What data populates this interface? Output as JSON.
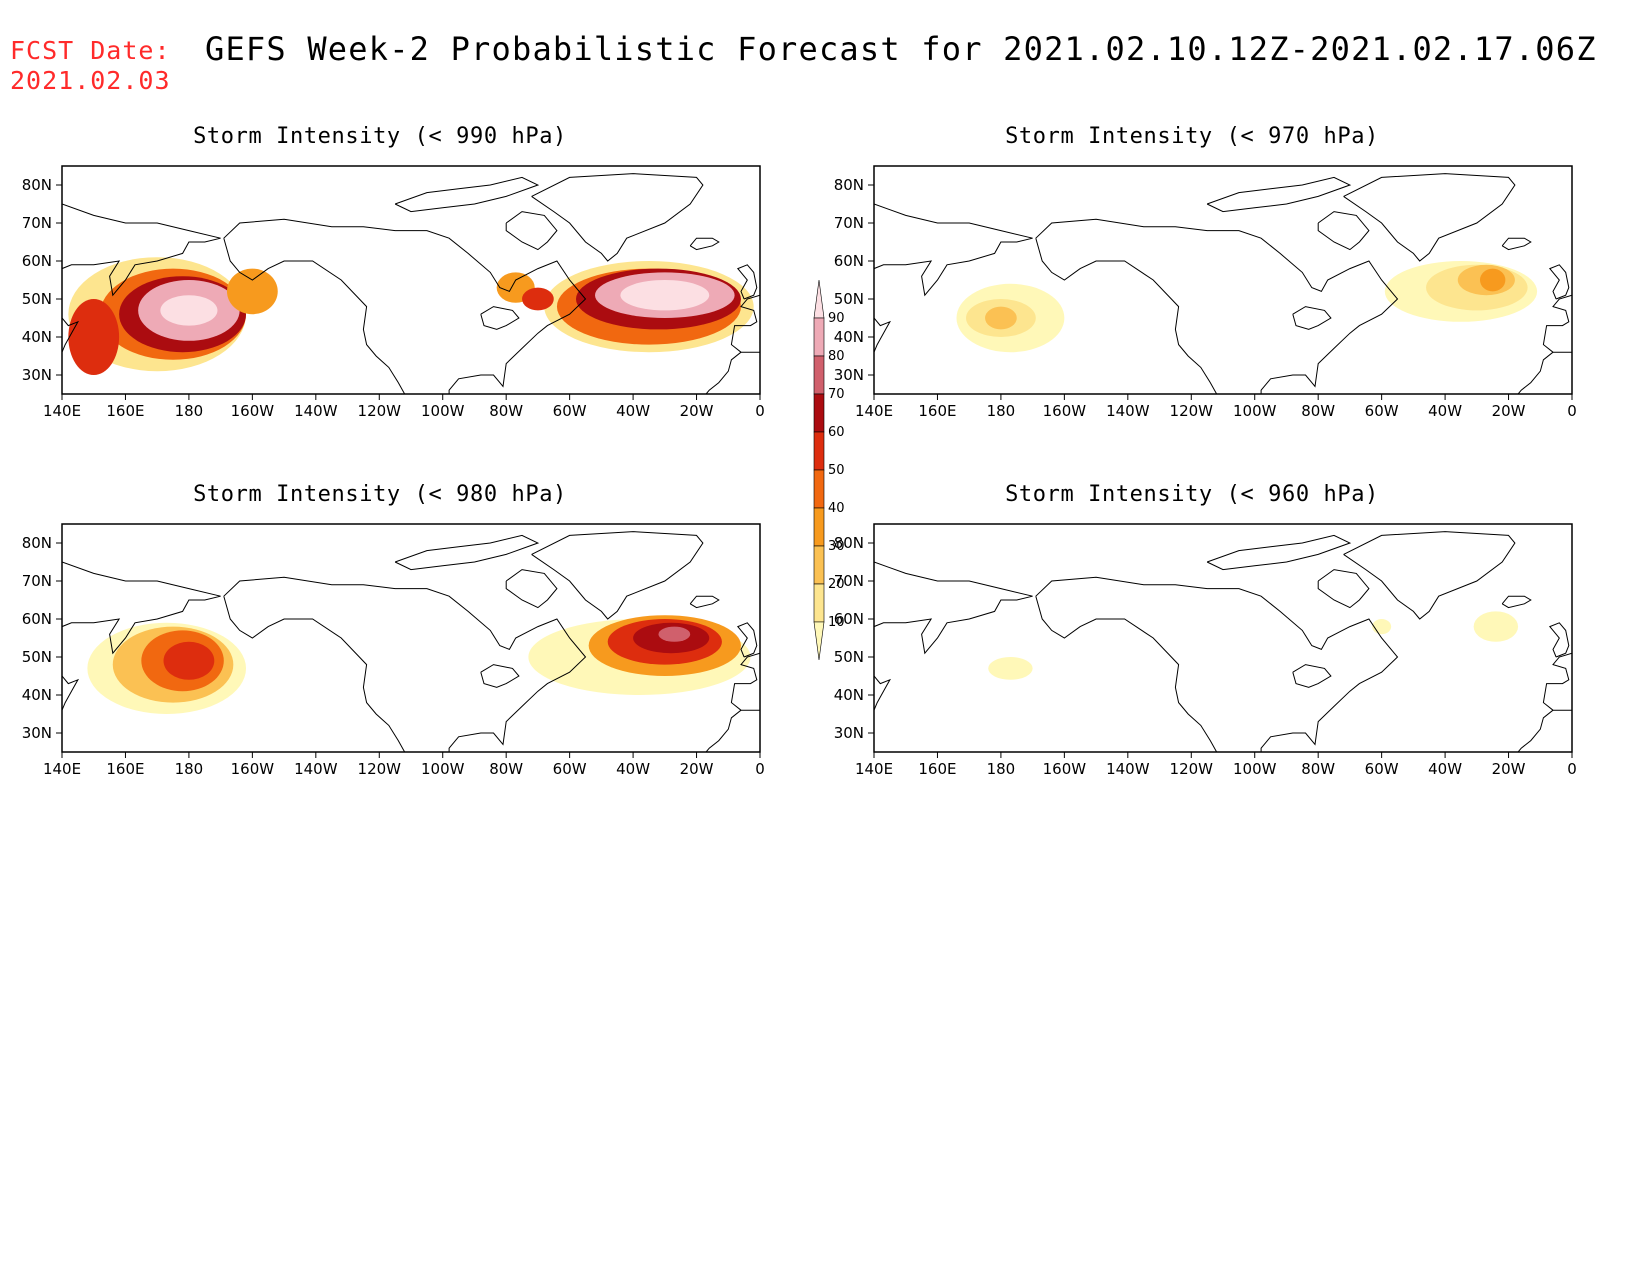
{
  "header": {
    "fcst_label": "FCST Date:",
    "fcst_date": "2021.02.03",
    "title": "GEFS Week-2 Probabilistic Forecast for 2021.02.10.12Z-2021.02.17.06Z"
  },
  "axes": {
    "lon_labels": [
      "140E",
      "160E",
      "180",
      "160W",
      "140W",
      "120W",
      "100W",
      "80W",
      "60W",
      "40W",
      "20W",
      "0"
    ],
    "lon_values": [
      140,
      160,
      180,
      200,
      220,
      240,
      260,
      280,
      300,
      320,
      340,
      360
    ],
    "lat_labels": [
      "30N",
      "40N",
      "50N",
      "60N",
      "70N",
      "80N"
    ],
    "lat_values": [
      30,
      40,
      50,
      60,
      70,
      80
    ],
    "lon_range": [
      140,
      360
    ],
    "lat_range": [
      25,
      85
    ]
  },
  "legend": {
    "labels": [
      "10",
      "20",
      "30",
      "40",
      "50",
      "60",
      "70",
      "80",
      "90"
    ],
    "colors": [
      "#fff8b8",
      "#fde58f",
      "#fbc153",
      "#f79a1e",
      "#f16810",
      "#dd2d0e",
      "#ab0c10",
      "#d0606c",
      "#eeaab6",
      "#fcdfe3"
    ]
  },
  "panels": [
    {
      "id": "p990",
      "title": "Storm Intensity (< 990 hPa)",
      "blobs": [
        {
          "lon": 170,
          "lat": 46,
          "rx": 28,
          "ry": 15,
          "level": 1
        },
        {
          "lon": 175,
          "lat": 46,
          "rx": 23,
          "ry": 12,
          "level": 4
        },
        {
          "lon": 178,
          "lat": 46,
          "rx": 20,
          "ry": 10,
          "level": 6
        },
        {
          "lon": 180,
          "lat": 47,
          "rx": 16,
          "ry": 8,
          "level": 8
        },
        {
          "lon": 180,
          "lat": 47,
          "rx": 9,
          "ry": 4,
          "level": 9
        },
        {
          "lon": 150,
          "lat": 40,
          "rx": 8,
          "ry": 10,
          "level": 5
        },
        {
          "lon": 200,
          "lat": 52,
          "rx": 8,
          "ry": 6,
          "level": 3
        },
        {
          "lon": 325,
          "lat": 48,
          "rx": 33,
          "ry": 12,
          "level": 1
        },
        {
          "lon": 325,
          "lat": 48,
          "rx": 29,
          "ry": 10,
          "level": 4
        },
        {
          "lon": 328,
          "lat": 50,
          "rx": 26,
          "ry": 8,
          "level": 6
        },
        {
          "lon": 330,
          "lat": 51,
          "rx": 22,
          "ry": 6,
          "level": 8
        },
        {
          "lon": 330,
          "lat": 51,
          "rx": 14,
          "ry": 4,
          "level": 9
        },
        {
          "lon": 283,
          "lat": 53,
          "rx": 6,
          "ry": 4,
          "level": 3
        },
        {
          "lon": 290,
          "lat": 50,
          "rx": 5,
          "ry": 3,
          "level": 5
        }
      ]
    },
    {
      "id": "p970",
      "title": "Storm Intensity (< 970 hPa)",
      "blobs": [
        {
          "lon": 183,
          "lat": 45,
          "rx": 17,
          "ry": 9,
          "level": 0
        },
        {
          "lon": 180,
          "lat": 45,
          "rx": 11,
          "ry": 5,
          "level": 1
        },
        {
          "lon": 180,
          "lat": 45,
          "rx": 5,
          "ry": 3,
          "level": 2
        },
        {
          "lon": 325,
          "lat": 52,
          "rx": 24,
          "ry": 8,
          "level": 0
        },
        {
          "lon": 330,
          "lat": 53,
          "rx": 16,
          "ry": 6,
          "level": 1
        },
        {
          "lon": 333,
          "lat": 55,
          "rx": 9,
          "ry": 4,
          "level": 2
        },
        {
          "lon": 335,
          "lat": 55,
          "rx": 4,
          "ry": 3,
          "level": 3
        }
      ]
    },
    {
      "id": "p980",
      "title": "Storm Intensity (< 980 hPa)",
      "blobs": [
        {
          "lon": 173,
          "lat": 47,
          "rx": 25,
          "ry": 12,
          "level": 0
        },
        {
          "lon": 175,
          "lat": 48,
          "rx": 19,
          "ry": 10,
          "level": 2
        },
        {
          "lon": 178,
          "lat": 49,
          "rx": 13,
          "ry": 8,
          "level": 4
        },
        {
          "lon": 180,
          "lat": 49,
          "rx": 8,
          "ry": 5,
          "level": 5
        },
        {
          "lon": 322,
          "lat": 50,
          "rx": 35,
          "ry": 10,
          "level": 0
        },
        {
          "lon": 330,
          "lat": 53,
          "rx": 24,
          "ry": 8,
          "level": 3
        },
        {
          "lon": 330,
          "lat": 54,
          "rx": 18,
          "ry": 6,
          "level": 5
        },
        {
          "lon": 332,
          "lat": 55,
          "rx": 12,
          "ry": 4,
          "level": 6
        },
        {
          "lon": 333,
          "lat": 56,
          "rx": 5,
          "ry": 2,
          "level": 7
        }
      ]
    },
    {
      "id": "p960",
      "title": "Storm Intensity (< 960 hPa)",
      "blobs": [
        {
          "lon": 183,
          "lat": 47,
          "rx": 7,
          "ry": 3,
          "level": 0
        },
        {
          "lon": 336,
          "lat": 58,
          "rx": 7,
          "ry": 4,
          "level": 0
        },
        {
          "lon": 300,
          "lat": 58,
          "rx": 3,
          "ry": 2,
          "level": 0
        }
      ]
    }
  ]
}
